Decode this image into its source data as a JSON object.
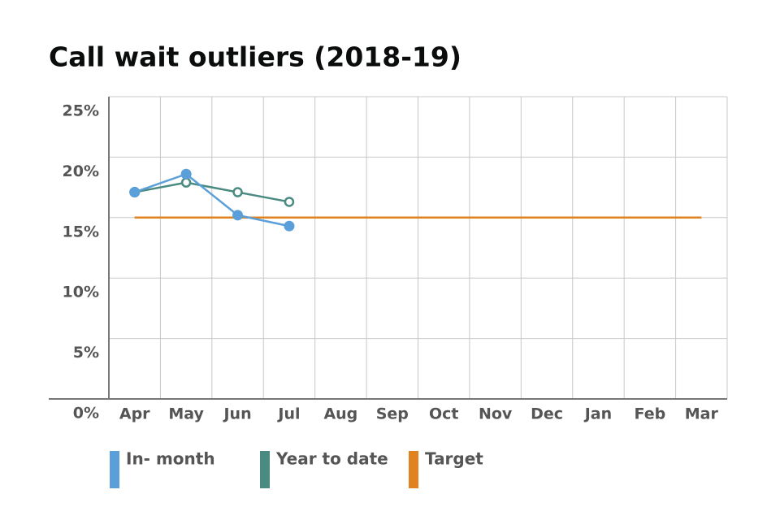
{
  "chart_data": {
    "type": "line",
    "title": "Call wait outliers (2018-19)",
    "categories": [
      "Apr",
      "May",
      "Jun",
      "Jul",
      "Aug",
      "Sep",
      "Oct",
      "Nov",
      "Dec",
      "Jan",
      "Feb",
      "Mar"
    ],
    "series": [
      {
        "name": "In- month",
        "color": "#5a9fd9",
        "marker": "filled",
        "values": [
          17.1,
          18.6,
          15.2,
          14.3,
          null,
          null,
          null,
          null,
          null,
          null,
          null,
          null
        ]
      },
      {
        "name": "Year to date",
        "color": "#4a8a80",
        "marker": "hollow",
        "values": [
          17.1,
          17.9,
          17.1,
          16.3,
          null,
          null,
          null,
          null,
          null,
          null,
          null,
          null
        ]
      },
      {
        "name": "Target",
        "color": "#e0821e",
        "marker": "none",
        "values": [
          15,
          15,
          15,
          15,
          15,
          15,
          15,
          15,
          15,
          15,
          15,
          15
        ]
      }
    ],
    "ylim": [
      0,
      25
    ],
    "yticks": [
      {
        "value": 0,
        "label": "0%"
      },
      {
        "value": 5,
        "label": "5%"
      },
      {
        "value": 10,
        "label": "10%"
      },
      {
        "value": 15,
        "label": "15%"
      },
      {
        "value": 20,
        "label": "20%"
      },
      {
        "value": 25,
        "label": "25%"
      }
    ],
    "grid": true
  }
}
